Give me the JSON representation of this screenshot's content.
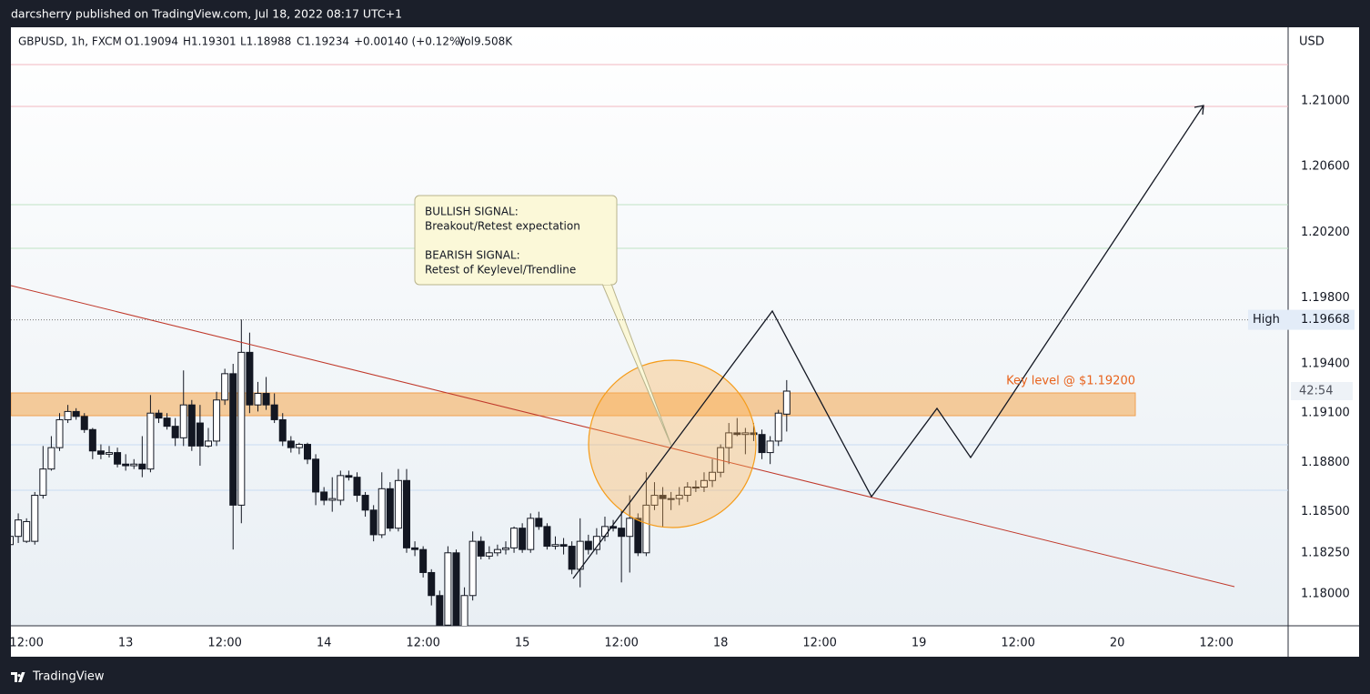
{
  "header": {
    "publisher": "darcsherry published on TradingView.com, Jul 18, 2022 08:17 UTC+1"
  },
  "chart_data": {
    "type": "candlestick",
    "symbol": "GBPUSD, 1h, FXCM",
    "stats": [
      "O1.19094",
      "H1.19301",
      "L1.18988",
      "C1.19234",
      "+0.00140 (+0.12%)",
      "Vol9.508K"
    ],
    "currency": "USD",
    "categories": [
      null,
      null,
      "12:00",
      null,
      null,
      null,
      null,
      null,
      null,
      null,
      null,
      null,
      null,
      null,
      "13",
      null,
      null,
      null,
      null,
      null,
      null,
      null,
      null,
      null,
      null,
      null,
      "12:00",
      null,
      null,
      null,
      null,
      null,
      null,
      null,
      null,
      null,
      null,
      null,
      "14",
      null,
      null,
      null,
      null,
      null,
      null,
      null,
      null,
      null,
      null,
      null,
      "12:00",
      null,
      null,
      null,
      null,
      null,
      null,
      null,
      null,
      null,
      null,
      null,
      "15",
      null,
      null,
      null,
      null,
      null,
      null,
      null,
      null,
      null,
      null,
      null,
      "12:00",
      null,
      null,
      null,
      null,
      null,
      null,
      null,
      null,
      null,
      null,
      null,
      "18",
      null,
      null,
      null,
      null,
      null,
      null,
      null,
      null,
      null,
      null,
      null,
      "12:00",
      null,
      null,
      null,
      null,
      null,
      null,
      null,
      null,
      null,
      null,
      null,
      "19",
      null,
      null,
      null,
      null,
      null,
      null,
      null,
      null,
      null,
      null,
      null,
      "12:00",
      null,
      null,
      null,
      null,
      null,
      null,
      null,
      null,
      null,
      null,
      null,
      "20",
      null,
      null,
      null,
      null,
      null,
      null,
      null,
      null,
      null,
      null,
      null,
      "12:00"
    ],
    "open": [
      1.183,
      1.1835,
      1.1832,
      1.1832,
      1.186,
      1.1876,
      1.1889,
      1.1906,
      1.1911,
      1.1908,
      1.19,
      1.1887,
      1.1885,
      1.1886,
      1.1879,
      1.1878,
      1.1879,
      1.1876,
      1.191,
      1.1907,
      1.1902,
      1.1895,
      1.1915,
      1.1904,
      1.189,
      1.1893,
      1.1918,
      1.1934,
      1.1854,
      1.1947,
      1.1915,
      1.1922,
      1.1915,
      1.1906,
      1.1893,
      1.1889,
      1.1891,
      1.1882,
      1.1862,
      1.1857,
      1.1857,
      1.1872,
      1.1871,
      1.186,
      1.1851,
      1.1836,
      1.1864,
      1.184,
      1.1869,
      1.1828,
      1.1827,
      1.1813,
      1.1799,
      1.1781,
      1.1825,
      1.178,
      1.1799,
      1.1832,
      1.1823,
      1.1825,
      1.1827,
      1.1828,
      1.184,
      1.1827,
      1.1846,
      1.1841,
      1.1829,
      1.183,
      1.1829,
      1.1815,
      1.1832,
      1.1827,
      1.1835,
      1.1841,
      1.184,
      1.1835,
      1.1846,
      1.1825,
      1.1854,
      1.186,
      1.1858,
      1.1858,
      1.186,
      1.1865,
      1.1865,
      1.1869,
      1.1874,
      1.1889,
      1.1898,
      1.1897,
      1.1898,
      1.1897,
      1.1886,
      1.1893,
      1.19094,
      null,
      null,
      null,
      null,
      null,
      null,
      null,
      null,
      null,
      null,
      null,
      null,
      null,
      null,
      null,
      null,
      null,
      null,
      null,
      null,
      null,
      null,
      null,
      null,
      null,
      null,
      null,
      null,
      null,
      null,
      null,
      null,
      null,
      null,
      null,
      null,
      null,
      null,
      null,
      null,
      null,
      null,
      null,
      null,
      null,
      null,
      null,
      null,
      null,
      null,
      null,
      null
    ],
    "high": [
      1.184,
      1.1849,
      1.1846,
      1.1862,
      1.189,
      1.1896,
      1.191,
      1.1915,
      1.1913,
      1.191,
      1.1901,
      1.1891,
      1.189,
      1.1889,
      1.1885,
      1.1882,
      1.1896,
      1.1921,
      1.1912,
      1.191,
      1.1907,
      1.1936,
      1.1918,
      1.1915,
      1.1901,
      1.1923,
      1.1937,
      1.194,
      1.1967,
      1.1959,
      1.1929,
      1.1932,
      1.1922,
      1.191,
      1.1896,
      1.1892,
      1.1892,
      1.1885,
      1.1865,
      1.1871,
      1.1875,
      1.1875,
      1.1874,
      1.1862,
      1.1854,
      1.1874,
      1.1868,
      1.1876,
      1.1876,
      1.1832,
      1.1829,
      1.1815,
      1.1802,
      1.1829,
      1.1827,
      1.1804,
      1.1838,
      1.1835,
      1.1829,
      1.183,
      1.1832,
      1.1841,
      1.1843,
      1.1849,
      1.185,
      1.1843,
      1.1835,
      1.1834,
      1.1832,
      1.1846,
      1.1836,
      1.184,
      1.1847,
      1.1845,
      1.1851,
      1.186,
      1.1849,
      1.1874,
      1.1868,
      1.1865,
      1.1862,
      1.1865,
      1.1868,
      1.1869,
      1.1874,
      1.1882,
      1.1891,
      1.1904,
      1.1907,
      1.1901,
      1.1904,
      1.19,
      1.1896,
      1.1912,
      1.19301,
      null,
      null,
      null,
      null,
      null,
      null,
      null,
      null,
      null,
      null,
      null,
      null,
      null,
      null,
      null,
      null,
      null,
      null,
      null,
      null,
      null,
      null,
      null,
      null,
      null,
      null,
      null,
      null,
      null,
      null,
      null,
      null,
      null,
      null,
      null,
      null,
      null,
      null,
      null,
      null,
      null,
      null,
      null,
      null,
      null,
      null,
      null,
      null,
      null,
      null,
      null,
      null
    ],
    "low": [
      1.1812,
      1.1831,
      1.1831,
      1.183,
      1.1858,
      1.1875,
      1.1887,
      1.1904,
      1.1906,
      1.1898,
      1.1882,
      1.1882,
      1.1883,
      1.1877,
      1.1875,
      1.1876,
      1.1871,
      1.1874,
      1.1904,
      1.19,
      1.189,
      1.189,
      1.1887,
      1.1878,
      1.1889,
      1.189,
      1.1915,
      1.1827,
      1.1843,
      1.191,
      1.1911,
      1.1912,
      1.1904,
      1.189,
      1.1886,
      1.1885,
      1.1879,
      1.1854,
      1.1854,
      1.185,
      1.1854,
      1.1869,
      1.1856,
      1.1847,
      1.1832,
      1.1834,
      1.1838,
      1.1838,
      1.1825,
      1.1823,
      1.181,
      1.1793,
      1.178,
      1.178,
      1.178,
      1.178,
      1.1796,
      1.1821,
      1.1821,
      1.1823,
      1.1824,
      1.1825,
      1.1825,
      1.1825,
      1.1839,
      1.1827,
      1.1827,
      1.1824,
      1.1812,
      1.1804,
      1.1824,
      1.1824,
      1.1832,
      1.1838,
      1.1807,
      1.1813,
      1.1823,
      1.1823,
      1.1851,
      1.1841,
      1.1851,
      1.1854,
      1.1856,
      1.1862,
      1.1862,
      1.1865,
      1.1871,
      1.1879,
      1.1896,
      1.1885,
      1.1893,
      1.1882,
      1.1879,
      1.189,
      1.18988,
      null,
      null,
      null,
      null,
      null,
      null,
      null,
      null,
      null,
      null,
      null,
      null,
      null,
      null,
      null,
      null,
      null,
      null,
      null,
      null,
      null,
      null,
      null,
      null,
      null,
      null,
      null,
      null,
      null,
      null,
      null,
      null,
      null,
      null,
      null,
      null,
      null,
      null,
      null,
      null,
      null,
      null,
      null,
      null,
      null,
      null,
      null,
      null,
      null,
      null,
      null,
      null
    ],
    "close": [
      1.1835,
      1.1845,
      1.1844,
      1.186,
      1.1876,
      1.1889,
      1.1906,
      1.1911,
      1.1908,
      1.19,
      1.1887,
      1.1885,
      1.1886,
      1.1879,
      1.1878,
      1.1879,
      1.1876,
      1.191,
      1.1907,
      1.1902,
      1.1895,
      1.1915,
      1.189,
      1.189,
      1.1893,
      1.1918,
      1.1934,
      1.1854,
      1.1947,
      1.1915,
      1.1922,
      1.1915,
      1.1906,
      1.1893,
      1.1889,
      1.1891,
      1.1882,
      1.1862,
      1.1857,
      1.1858,
      1.1872,
      1.1871,
      1.186,
      1.1851,
      1.1836,
      1.1864,
      1.184,
      1.1869,
      1.1828,
      1.1827,
      1.1813,
      1.1799,
      1.1781,
      1.1825,
      1.178,
      1.1799,
      1.1832,
      1.1823,
      1.1825,
      1.1827,
      1.1828,
      1.184,
      1.1827,
      1.1846,
      1.1841,
      1.1829,
      1.183,
      1.1829,
      1.1815,
      1.1832,
      1.1827,
      1.1835,
      1.1841,
      1.184,
      1.1835,
      1.1846,
      1.1825,
      1.1854,
      1.186,
      1.1858,
      1.1858,
      1.186,
      1.1865,
      1.1865,
      1.1869,
      1.1874,
      1.1889,
      1.1898,
      1.1897,
      1.1898,
      1.1897,
      1.1886,
      1.1893,
      1.191,
      1.19234,
      null,
      null,
      null,
      null,
      null,
      null,
      null,
      null,
      null,
      null,
      null,
      null,
      null,
      null,
      null,
      null,
      null,
      null,
      null,
      null,
      null,
      null,
      null,
      null,
      null,
      null,
      null,
      null,
      null,
      null,
      null,
      null,
      null,
      null,
      null,
      null,
      null,
      null,
      null,
      null,
      null,
      null,
      null,
      null,
      null,
      null,
      null,
      null,
      null,
      null,
      null,
      null
    ],
    "up_color": "#ffffff",
    "down_color": "#131722",
    "ylim": [
      1.17806,
      1.21448
    ],
    "yticks": [
      {
        "value": 1.21,
        "label": "1.21000"
      },
      {
        "value": 1.206,
        "label": "1.20600"
      },
      {
        "value": 1.202,
        "label": "1.20200"
      },
      {
        "value": 1.198,
        "label": "1.19800"
      },
      {
        "value": 1.194,
        "label": "1.19400"
      },
      {
        "value": 1.191,
        "label": "1.19100"
      },
      {
        "value": 1.188,
        "label": "1.18800"
      },
      {
        "value": 1.185,
        "label": "1.18500"
      },
      {
        "value": 1.1825,
        "label": "1.18250"
      },
      {
        "value": 1.18,
        "label": "1.18000"
      }
    ],
    "grid": false,
    "high_label": "High",
    "high_value": 1.19668,
    "countdown": "42:54",
    "callout": [
      "BULLISH SIGNAL:",
      "Breakout/Retest expectation",
      "BEARISH SIGNAL:",
      "Retest of Keylevel/Trendline"
    ],
    "key_level": "Key level @ $1.19200"
  },
  "footer": {
    "brand": "TradingView"
  }
}
